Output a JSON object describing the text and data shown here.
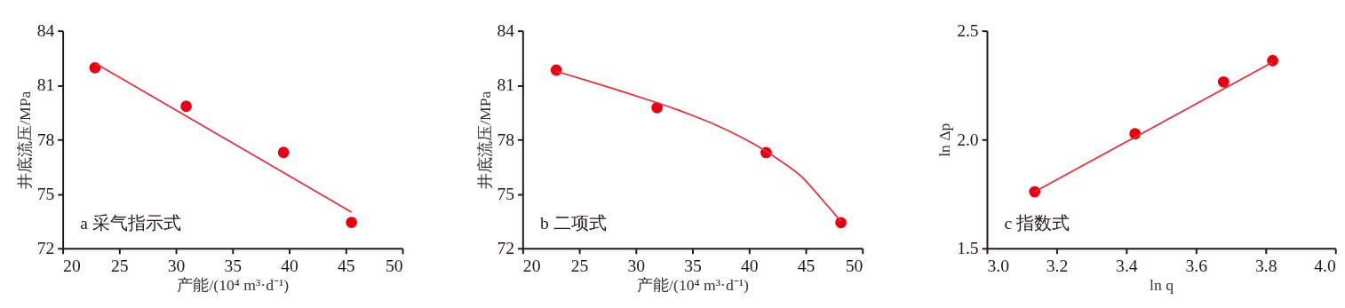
{
  "chart_data": [
    {
      "type": "scatter",
      "xlabel": "产能/(10⁴ m³·d⁻¹)",
      "ylabel": "井底流压/MPa",
      "annotations": [
        "a 采气指示式"
      ],
      "marker": "circle",
      "grid": false,
      "xlim": [
        20,
        50
      ],
      "xticks": [
        20,
        25,
        30,
        35,
        40,
        45,
        50
      ],
      "ylim": [
        72,
        84
      ],
      "yticks": [
        72,
        75,
        78,
        81,
        84
      ],
      "series": [
        {
          "color": "#e60012",
          "x": [
            22.85,
            30.9,
            39.5,
            45.5
          ],
          "values": [
            81.96,
            79.84,
            77.29,
            73.43
          ]
        },
        {
          "type": "line",
          "color": "#e0303a",
          "marker": "none",
          "line_style": "solid",
          "x": [
            22.9,
            45.5
          ],
          "values": [
            82.2,
            74.0
          ]
        }
      ]
    },
    {
      "type": "scatter",
      "xlabel": "产能/(10⁴ m³·d⁻¹)",
      "ylabel": "井底流压/MPa",
      "annotations": [
        "b 二项式"
      ],
      "marker": "circle",
      "grid": false,
      "xlim": [
        20,
        50
      ],
      "xticks": [
        20,
        25,
        30,
        35,
        40,
        45,
        50
      ],
      "ylim": [
        72,
        84
      ],
      "yticks": [
        72,
        75,
        78,
        81,
        84
      ],
      "series": [
        {
          "color": "#e60012",
          "x": [
            22.97,
            31.87,
            41.5,
            48.1
          ],
          "values": [
            81.83,
            79.76,
            77.28,
            73.42
          ]
        },
        {
          "type": "line",
          "color": "#e0303a",
          "marker": "none",
          "line_style": "solid",
          "x": [
            22.97,
            26.74,
            31.87,
            34.44,
            37.0,
            39.56,
            41.5,
            43.41,
            44.7,
            46.49,
            48.1
          ],
          "values": [
            81.77,
            81.05,
            80.03,
            79.46,
            78.82,
            78.05,
            77.35,
            76.55,
            75.91,
            74.66,
            73.5
          ]
        }
      ]
    },
    {
      "type": "scatter",
      "xlabel": "ln q",
      "ylabel": "ln Δp",
      "annotations": [
        "c 指数式"
      ],
      "marker": "circle",
      "grid": false,
      "xlim": [
        3.0,
        4.0
      ],
      "xticks": [
        {
          "value": 3.0,
          "label": "3.0"
        },
        3.2,
        3.4,
        3.6,
        3.8,
        {
          "value": 4.0,
          "label": "4.0"
        }
      ],
      "ylim": [
        1.5,
        2.5
      ],
      "yticks": [
        1.5,
        {
          "value": 2.0,
          "label": "2.0"
        },
        2.5
      ],
      "series": [
        {
          "color": "#e60012",
          "x": [
            3.137,
            3.425,
            3.679,
            3.82
          ],
          "values": [
            1.76,
            2.027,
            2.265,
            2.363
          ]
        },
        {
          "type": "line",
          "color": "#e0303a",
          "marker": "none",
          "line_style": "solid",
          "x": [
            3.137,
            3.82
          ],
          "values": [
            1.76,
            2.356
          ]
        }
      ]
    }
  ]
}
